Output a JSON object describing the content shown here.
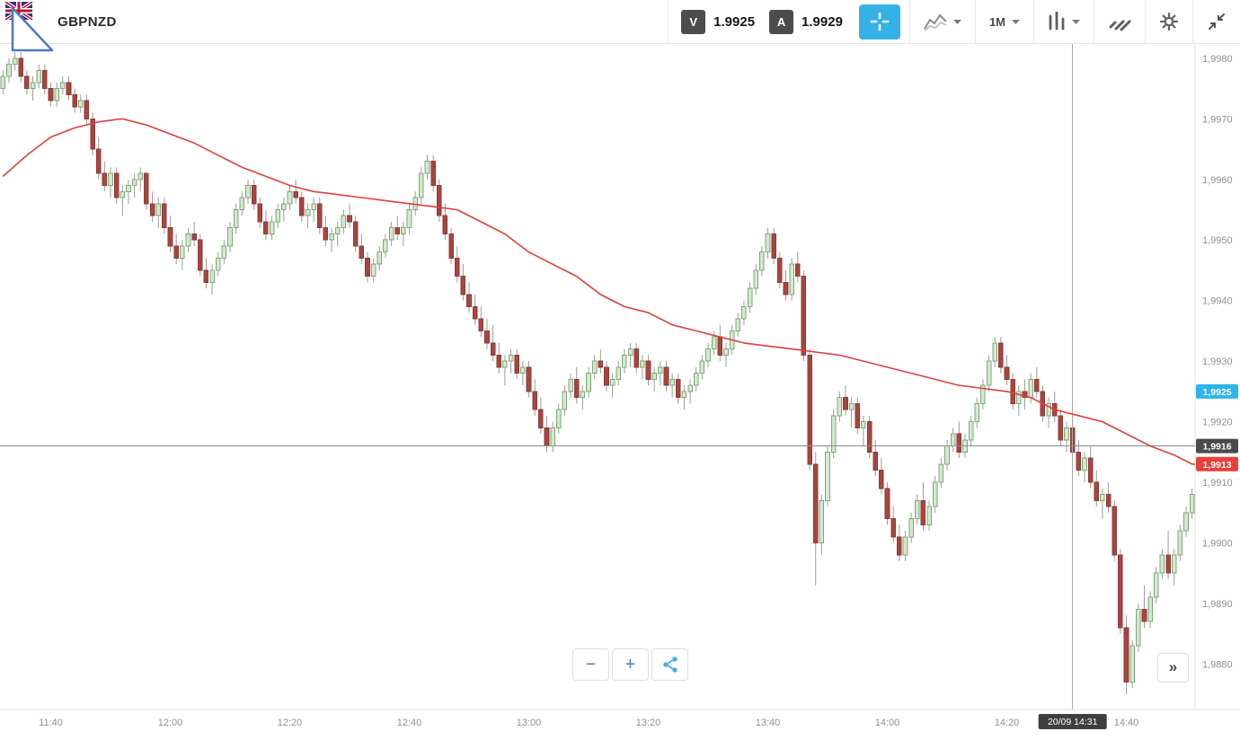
{
  "header": {
    "symbol": "GBPNZD",
    "sell_label": "V",
    "sell_price": "1.9925",
    "buy_label": "A",
    "buy_price": "1.9929",
    "timeframe": "1M"
  },
  "controls": {
    "zoom_out": "−",
    "zoom_in": "+",
    "expand": "»"
  },
  "colors": {
    "accent_blue": "#35b1e6",
    "up_fill": "#d5e8cf",
    "up_stroke": "#7ba878",
    "down_fill": "#a8453e",
    "down_stroke": "#8e3a34",
    "wick": "#9b9b9b",
    "ma_line": "#e23d3c",
    "axis_text": "#8f8f8f",
    "badge_blue": "#2eb4e9",
    "badge_dark": "#4a4a4a",
    "badge_red": "#e8413b",
    "crosshair": "#a8a8a8",
    "grid_line": "#8a8a8a"
  },
  "chart_data": {
    "type": "candlestick",
    "symbol": "GBPNZD",
    "interval": "1M",
    "start_time": "11:32",
    "interval_minutes": 1,
    "price_base": 1.98,
    "price_unit": 0.0001,
    "axis": {
      "top_price": 1.99825,
      "bottom_price": 1.98725
    },
    "y_ticks": [
      1.998,
      1.997,
      1.996,
      1.995,
      1.994,
      1.993,
      1.992,
      1.991,
      1.99,
      1.989,
      1.988
    ],
    "x_ticks": [
      "11:40",
      "12:00",
      "12:20",
      "12:40",
      "13:00",
      "13:20",
      "13:40",
      "14:00",
      "14:20",
      "14:40"
    ],
    "ohlc_pips": [
      [
        175,
        178,
        174,
        177
      ],
      [
        177,
        180,
        176,
        179
      ],
      [
        179,
        181,
        178,
        180
      ],
      [
        180,
        181,
        176,
        177
      ],
      [
        177,
        178,
        174,
        175
      ],
      [
        175,
        177,
        173,
        176
      ],
      [
        176,
        179,
        175,
        178
      ],
      [
        178,
        179,
        174,
        175
      ],
      [
        175,
        176,
        172,
        173
      ],
      [
        173,
        176,
        172,
        175
      ],
      [
        175,
        177,
        174,
        176
      ],
      [
        176,
        177,
        173,
        174
      ],
      [
        174,
        175,
        171,
        172
      ],
      [
        172,
        174,
        171,
        173
      ],
      [
        173,
        174,
        169,
        170
      ],
      [
        170,
        171,
        164,
        165
      ],
      [
        165,
        167,
        160,
        161
      ],
      [
        161,
        163,
        158,
        159
      ],
      [
        159,
        162,
        157,
        161
      ],
      [
        161,
        162,
        156,
        157
      ],
      [
        157,
        159,
        154,
        158
      ],
      [
        158,
        160,
        156,
        159
      ],
      [
        159,
        161,
        157,
        160
      ],
      [
        160,
        162,
        158,
        161
      ],
      [
        161,
        161,
        155,
        156
      ],
      [
        156,
        158,
        153,
        154
      ],
      [
        154,
        157,
        152,
        156
      ],
      [
        156,
        157,
        151,
        152
      ],
      [
        152,
        154,
        148,
        149
      ],
      [
        149,
        151,
        146,
        147
      ],
      [
        147,
        150,
        145,
        149
      ],
      [
        149,
        152,
        148,
        151
      ],
      [
        151,
        153,
        149,
        150
      ],
      [
        150,
        151,
        144,
        145
      ],
      [
        145,
        147,
        142,
        143
      ],
      [
        143,
        146,
        141,
        145
      ],
      [
        145,
        148,
        144,
        147
      ],
      [
        147,
        150,
        146,
        149
      ],
      [
        149,
        153,
        148,
        152
      ],
      [
        152,
        156,
        151,
        155
      ],
      [
        155,
        158,
        154,
        157
      ],
      [
        157,
        160,
        156,
        159
      ],
      [
        159,
        160,
        155,
        156
      ],
      [
        156,
        157,
        152,
        153
      ],
      [
        153,
        155,
        150,
        151
      ],
      [
        151,
        154,
        150,
        153
      ],
      [
        153,
        156,
        152,
        155
      ],
      [
        155,
        157,
        153,
        156
      ],
      [
        156,
        159,
        155,
        158
      ],
      [
        158,
        160,
        156,
        157
      ],
      [
        157,
        158,
        153,
        154
      ],
      [
        154,
        156,
        152,
        155
      ],
      [
        155,
        157,
        153,
        156
      ],
      [
        156,
        157,
        151,
        152
      ],
      [
        152,
        154,
        149,
        150
      ],
      [
        150,
        152,
        148,
        151
      ],
      [
        151,
        153,
        149,
        152
      ],
      [
        152,
        155,
        151,
        154
      ],
      [
        154,
        156,
        152,
        153
      ],
      [
        153,
        154,
        148,
        149
      ],
      [
        149,
        151,
        146,
        147
      ],
      [
        147,
        148,
        143,
        144
      ],
      [
        144,
        147,
        143,
        146
      ],
      [
        146,
        149,
        145,
        148
      ],
      [
        148,
        151,
        147,
        150
      ],
      [
        150,
        153,
        149,
        152
      ],
      [
        152,
        154,
        150,
        151
      ],
      [
        151,
        153,
        149,
        152
      ],
      [
        152,
        156,
        151,
        155
      ],
      [
        155,
        158,
        154,
        157
      ],
      [
        157,
        162,
        156,
        161
      ],
      [
        161,
        164,
        160,
        163
      ],
      [
        163,
        164,
        158,
        159
      ],
      [
        159,
        160,
        153,
        154
      ],
      [
        154,
        156,
        150,
        151
      ],
      [
        151,
        152,
        146,
        147
      ],
      [
        147,
        149,
        143,
        144
      ],
      [
        144,
        146,
        140,
        141
      ],
      [
        141,
        143,
        138,
        139
      ],
      [
        139,
        141,
        136,
        137
      ],
      [
        137,
        139,
        134,
        135
      ],
      [
        135,
        137,
        132,
        133
      ],
      [
        133,
        136,
        130,
        131
      ],
      [
        131,
        133,
        128,
        129
      ],
      [
        129,
        131,
        126,
        130
      ],
      [
        130,
        132,
        128,
        131
      ],
      [
        131,
        132,
        127,
        128
      ],
      [
        128,
        130,
        126,
        129
      ],
      [
        129,
        130,
        124,
        125
      ],
      [
        125,
        127,
        121,
        122
      ],
      [
        122,
        124,
        118,
        119
      ],
      [
        119,
        121,
        115,
        116
      ],
      [
        116,
        120,
        115,
        119
      ],
      [
        119,
        123,
        118,
        122
      ],
      [
        122,
        126,
        121,
        125
      ],
      [
        125,
        128,
        124,
        127
      ],
      [
        127,
        129,
        123,
        124
      ],
      [
        124,
        126,
        122,
        125
      ],
      [
        125,
        129,
        124,
        128
      ],
      [
        128,
        131,
        127,
        130
      ],
      [
        130,
        132,
        128,
        129
      ],
      [
        129,
        130,
        125,
        126
      ],
      [
        126,
        128,
        124,
        127
      ],
      [
        127,
        130,
        126,
        129
      ],
      [
        129,
        132,
        128,
        131
      ],
      [
        131,
        133,
        129,
        132
      ],
      [
        132,
        133,
        128,
        129
      ],
      [
        129,
        131,
        127,
        130
      ],
      [
        130,
        131,
        126,
        127
      ],
      [
        127,
        129,
        125,
        128
      ],
      [
        128,
        130,
        126,
        129
      ],
      [
        129,
        130,
        125,
        126
      ],
      [
        126,
        128,
        124,
        127
      ],
      [
        127,
        128,
        123,
        124
      ],
      [
        124,
        126,
        122,
        125
      ],
      [
        125,
        127,
        123,
        126
      ],
      [
        126,
        129,
        125,
        128
      ],
      [
        128,
        131,
        127,
        130
      ],
      [
        130,
        133,
        129,
        132
      ],
      [
        132,
        135,
        131,
        134
      ],
      [
        134,
        136,
        130,
        131
      ],
      [
        131,
        133,
        129,
        132
      ],
      [
        132,
        136,
        131,
        135
      ],
      [
        135,
        138,
        134,
        137
      ],
      [
        137,
        140,
        136,
        139
      ],
      [
        139,
        143,
        138,
        142
      ],
      [
        142,
        146,
        141,
        145
      ],
      [
        145,
        149,
        144,
        148
      ],
      [
        148,
        152,
        147,
        151
      ],
      [
        151,
        152,
        146,
        147
      ],
      [
        147,
        148,
        142,
        143
      ],
      [
        143,
        145,
        140,
        141
      ],
      [
        141,
        147,
        140,
        146
      ],
      [
        146,
        148,
        143,
        144
      ],
      [
        144,
        145,
        130,
        131
      ],
      [
        131,
        132,
        112,
        113
      ],
      [
        113,
        115,
        93,
        100
      ],
      [
        100,
        108,
        98,
        107
      ],
      [
        107,
        116,
        106,
        115
      ],
      [
        115,
        122,
        114,
        121
      ],
      [
        121,
        125,
        120,
        124
      ],
      [
        124,
        126,
        121,
        122
      ],
      [
        122,
        124,
        119,
        123
      ],
      [
        123,
        124,
        118,
        119
      ],
      [
        119,
        121,
        116,
        120
      ],
      [
        120,
        121,
        114,
        115
      ],
      [
        115,
        117,
        111,
        112
      ],
      [
        112,
        114,
        108,
        109
      ],
      [
        109,
        110,
        103,
        104
      ],
      [
        104,
        106,
        100,
        101
      ],
      [
        101,
        103,
        97,
        98
      ],
      [
        98,
        102,
        97,
        101
      ],
      [
        101,
        105,
        100,
        104
      ],
      [
        104,
        108,
        103,
        107
      ],
      [
        107,
        110,
        102,
        103
      ],
      [
        103,
        107,
        102,
        106
      ],
      [
        106,
        111,
        105,
        110
      ],
      [
        110,
        114,
        109,
        113
      ],
      [
        113,
        117,
        112,
        116
      ],
      [
        116,
        119,
        115,
        118
      ],
      [
        118,
        120,
        114,
        115
      ],
      [
        115,
        118,
        114,
        117
      ],
      [
        117,
        121,
        116,
        120
      ],
      [
        120,
        124,
        119,
        123
      ],
      [
        123,
        127,
        122,
        126
      ],
      [
        126,
        131,
        125,
        130
      ],
      [
        130,
        134,
        129,
        133
      ],
      [
        133,
        134,
        128,
        129
      ],
      [
        129,
        131,
        126,
        127
      ],
      [
        127,
        128,
        122,
        123
      ],
      [
        123,
        126,
        121,
        125
      ],
      [
        125,
        127,
        122,
        124
      ],
      [
        124,
        128,
        123,
        127
      ],
      [
        127,
        129,
        124,
        125
      ],
      [
        125,
        126,
        120,
        121
      ],
      [
        121,
        124,
        119,
        123
      ],
      [
        123,
        125,
        120,
        121
      ],
      [
        121,
        122,
        116,
        117
      ],
      [
        117,
        120,
        115,
        119
      ],
      [
        119,
        121,
        114,
        115
      ],
      [
        115,
        117,
        111,
        112
      ],
      [
        112,
        115,
        110,
        114
      ],
      [
        114,
        116,
        109,
        110
      ],
      [
        110,
        112,
        106,
        107
      ],
      [
        107,
        109,
        104,
        108
      ],
      [
        108,
        110,
        105,
        106
      ],
      [
        106,
        107,
        97,
        98
      ],
      [
        98,
        99,
        85,
        86
      ],
      [
        86,
        88,
        75,
        77
      ],
      [
        77,
        84,
        76,
        83
      ],
      [
        83,
        90,
        82,
        89
      ],
      [
        89,
        93,
        86,
        87
      ],
      [
        87,
        92,
        86,
        91
      ],
      [
        91,
        96,
        90,
        95
      ],
      [
        95,
        99,
        94,
        98
      ],
      [
        98,
        102,
        94,
        95
      ],
      [
        95,
        99,
        93,
        98
      ],
      [
        98,
        103,
        97,
        102
      ],
      [
        102,
        106,
        101,
        105
      ],
      [
        105,
        109,
        104,
        108
      ]
    ],
    "ma": {
      "color": "#e23d3c",
      "points": [
        [
          "11:32",
          1.99605
        ],
        [
          "11:36",
          1.9964
        ],
        [
          "11:40",
          1.9967
        ],
        [
          "11:44",
          1.99685
        ],
        [
          "11:48",
          1.99695
        ],
        [
          "11:52",
          1.997
        ],
        [
          "11:56",
          1.9969
        ],
        [
          "12:00",
          1.99675
        ],
        [
          "12:04",
          1.9966
        ],
        [
          "12:08",
          1.9964
        ],
        [
          "12:12",
          1.9962
        ],
        [
          "12:16",
          1.99605
        ],
        [
          "12:20",
          1.9959
        ],
        [
          "12:24",
          1.9958
        ],
        [
          "12:28",
          1.99575
        ],
        [
          "12:32",
          1.9957
        ],
        [
          "12:36",
          1.99565
        ],
        [
          "12:40",
          1.9956
        ],
        [
          "12:44",
          1.99555
        ],
        [
          "12:48",
          1.9955
        ],
        [
          "12:52",
          1.9953
        ],
        [
          "12:56",
          1.9951
        ],
        [
          "13:00",
          1.9948
        ],
        [
          "13:04",
          1.9946
        ],
        [
          "13:08",
          1.9944
        ],
        [
          "13:12",
          1.9941
        ],
        [
          "13:16",
          1.9939
        ],
        [
          "13:20",
          1.9938
        ],
        [
          "13:24",
          1.9936
        ],
        [
          "13:28",
          1.9935
        ],
        [
          "13:32",
          1.9934
        ],
        [
          "13:36",
          1.9933
        ],
        [
          "13:40",
          1.99325
        ],
        [
          "13:44",
          1.9932
        ],
        [
          "13:48",
          1.99315
        ],
        [
          "13:52",
          1.9931
        ],
        [
          "13:56",
          1.993
        ],
        [
          "14:00",
          1.9929
        ],
        [
          "14:04",
          1.9928
        ],
        [
          "14:08",
          1.9927
        ],
        [
          "14:12",
          1.9926
        ],
        [
          "14:16",
          1.99255
        ],
        [
          "14:20",
          1.9925
        ],
        [
          "14:24",
          1.9924
        ],
        [
          "14:28",
          1.9922
        ],
        [
          "14:32",
          1.9921
        ],
        [
          "14:36",
          1.992
        ],
        [
          "14:40",
          1.9918
        ],
        [
          "14:44",
          1.9916
        ],
        [
          "14:48",
          1.99145
        ],
        [
          "14:51",
          1.9913
        ]
      ]
    },
    "price_lines": [
      {
        "name": "bid-price-tag",
        "price": 1.9925,
        "label": "1,9925",
        "color": "#2eb4e9",
        "line": false
      },
      {
        "name": "reference-price-tag",
        "price": 1.9916,
        "label": "1,9916",
        "color": "#4a4a4a",
        "line": true
      },
      {
        "name": "ma-value-tag",
        "price": 1.9913,
        "label": "1,9913",
        "color": "#e8413b",
        "line": false
      }
    ],
    "crosshair": {
      "date": "20/09",
      "time": "14:31",
      "label": "20/09 14:31"
    }
  }
}
